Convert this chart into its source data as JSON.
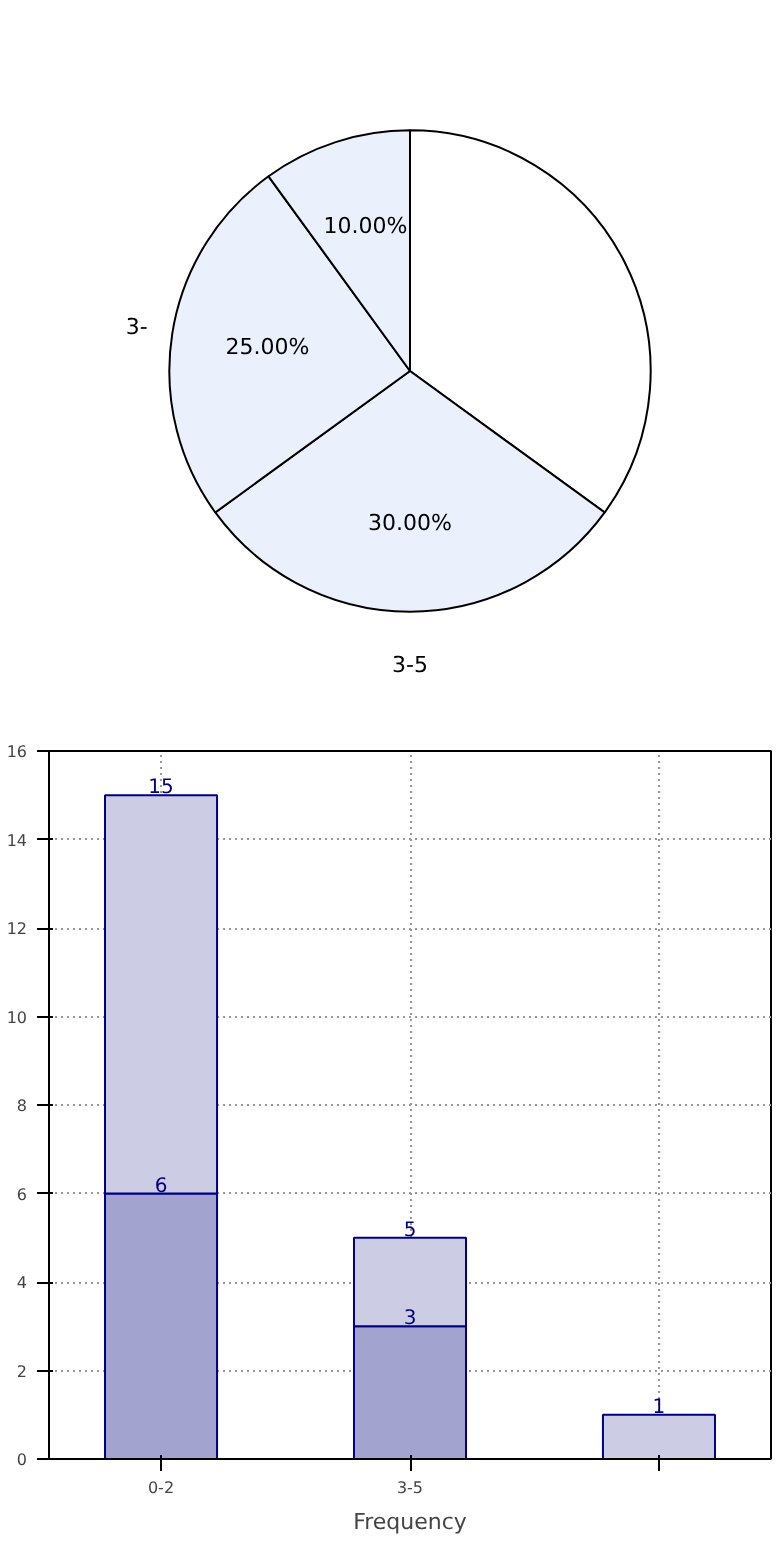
{
  "chart_data": [
    {
      "type": "pie",
      "categories": [
        null,
        "3-5",
        "3-",
        null
      ],
      "values": [
        35,
        30,
        25,
        10
      ],
      "colors": [
        "#ffffff",
        "#eaf0fc",
        "#eaf0fc",
        "#eaf0fc"
      ],
      "value_labels": [
        null,
        "30.00%",
        "25.00%",
        "10.00%"
      ]
    },
    {
      "type": "bar",
      "categories": [
        "0-2",
        "3-5",
        null
      ],
      "xlabel": "Frequency",
      "series": [
        {
          "color": "#a3a3d0",
          "values": [
            6,
            3,
            null
          ],
          "value_labels": [
            "6",
            "3",
            null
          ]
        },
        {
          "color": "#ccccE4",
          "values": [
            9,
            2,
            1
          ]
        }
      ],
      "totals": [
        "15",
        "5",
        "1"
      ],
      "stacked": true,
      "ylim": [
        0,
        16
      ],
      "yticks": [
        0,
        2,
        4,
        6,
        8,
        10,
        12,
        14,
        16
      ],
      "grid": true
    }
  ]
}
